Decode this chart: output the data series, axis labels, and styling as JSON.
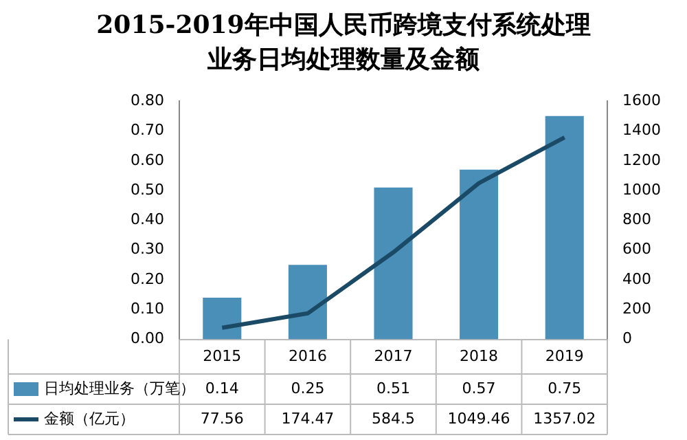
{
  "chart_data": {
    "type": "bar",
    "title": "2015-2019年中国人民币跨境支付系统处理业务日均处理数量及金额",
    "categories": [
      "2015",
      "2016",
      "2017",
      "2018",
      "2019"
    ],
    "series": [
      {
        "name": "日均处理业务（万笔）",
        "color": "#4a8fb8",
        "values": [
          0.14,
          0.25,
          0.51,
          0.57,
          0.75
        ]
      },
      {
        "name": "金额（亿元）",
        "type": "line",
        "axis": "y2",
        "color": "#1b4a66",
        "values": [
          77.56,
          174.47,
          584.5,
          1049.46,
          1357.02
        ]
      }
    ],
    "ylim": [
      0,
      0.8
    ],
    "yticks": [
      {
        "value": 0,
        "label": "0.00"
      },
      {
        "value": 0.1,
        "label": "0.10"
      },
      {
        "value": 0.2,
        "label": "0.20"
      },
      {
        "value": 0.3,
        "label": "0.30"
      },
      {
        "value": 0.4,
        "label": "0.40"
      },
      {
        "value": 0.5,
        "label": "0.50"
      },
      {
        "value": 0.6,
        "label": "0.60"
      },
      {
        "value": 0.7,
        "label": "0.70"
      },
      {
        "value": 0.8,
        "label": "0.80"
      }
    ],
    "y2lim": [
      0,
      1600
    ],
    "y2ticks": [
      0,
      200,
      400,
      600,
      800,
      1000,
      1200,
      1400,
      1600
    ],
    "grid": false,
    "legend": "bottom",
    "marker": "none",
    "data_labels": true
  }
}
